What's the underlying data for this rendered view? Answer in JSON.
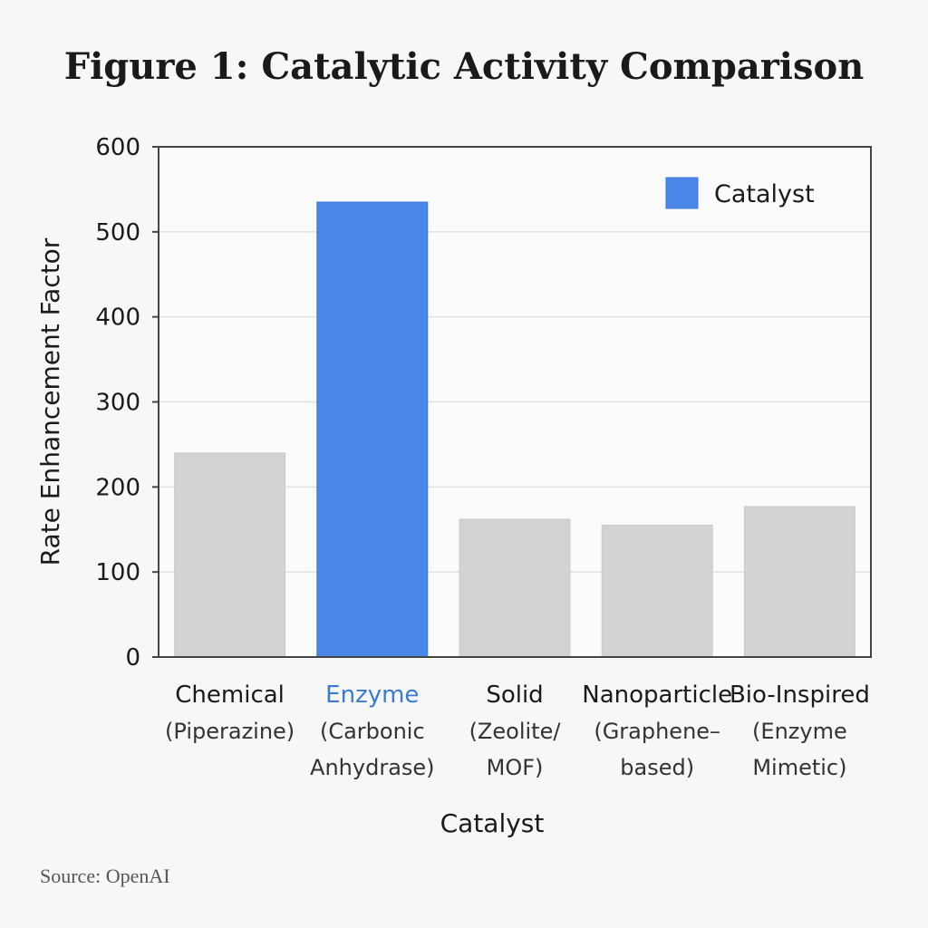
{
  "figure_title": "Figure 1: Catalytic Activity Comparison",
  "source_note": "Source: OpenAI",
  "colors": {
    "highlight": "#4a86e8",
    "default_bar": "#d3d3d3",
    "axis": "#444444",
    "grid": "#e2e2e2",
    "highlight_text": "#3a7bd5",
    "text": "#1a1a1a"
  },
  "chart_data": {
    "type": "bar",
    "title": "Figure 1: Catalytic Activity Comparison",
    "xlabel": "Catalyst",
    "ylabel": "Rate Enhancement Factor",
    "ylim": [
      0,
      600
    ],
    "yticks": [
      0,
      100,
      200,
      300,
      400,
      500,
      600
    ],
    "grid": true,
    "legend": {
      "placement": "top-right",
      "entries": [
        "Catalyst"
      ]
    },
    "categories": [
      {
        "lines": [
          "Chemical",
          "(Piperazine)"
        ],
        "value": 240,
        "highlight": false
      },
      {
        "lines": [
          "Enzyme",
          "(Carbonic",
          "Anhydrase)"
        ],
        "value": 535,
        "highlight": true
      },
      {
        "lines": [
          "Solid",
          "(Zeolite/",
          "MOF)"
        ],
        "value": 162,
        "highlight": false
      },
      {
        "lines": [
          "Nanoparticle",
          "(Graphene–",
          "based)"
        ],
        "value": 155,
        "highlight": false
      },
      {
        "lines": [
          "Bio-Inspired",
          "(Enzyme",
          "Mimetic)"
        ],
        "value": 177,
        "highlight": false
      }
    ]
  }
}
